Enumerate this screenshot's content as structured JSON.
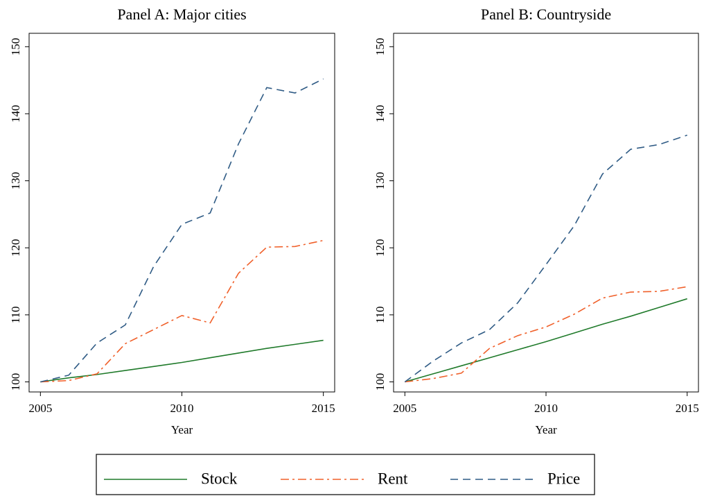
{
  "chart_data": [
    {
      "type": "line",
      "title": "Panel A: Major cities",
      "xlabel": "Year",
      "x": [
        2005,
        2006,
        2007,
        2008,
        2009,
        2010,
        2011,
        2012,
        2013,
        2014,
        2015
      ],
      "series": [
        {
          "name": "Stock",
          "color": "#1f7a2a",
          "values": [
            100,
            100.6,
            101.1,
            101.7,
            102.3,
            102.9,
            103.6,
            104.3,
            105.0,
            105.6,
            106.2
          ]
        },
        {
          "name": "Rent",
          "color": "#f0602a",
          "values": [
            100,
            100.2,
            101.2,
            105.7,
            107.8,
            109.9,
            108.8,
            116.2,
            120.1,
            120.2,
            121.1
          ]
        },
        {
          "name": "Price",
          "color": "#2f5b85",
          "values": [
            100,
            101,
            105.8,
            108.5,
            117.2,
            123.5,
            125.2,
            135.5,
            143.9,
            143.1,
            145.2
          ]
        }
      ],
      "xlim": [
        2004.6,
        2015.4
      ],
      "xticks": [
        2005,
        2010,
        2015
      ],
      "ylim": [
        98.5,
        152
      ],
      "yticks": [
        100,
        110,
        120,
        130,
        140,
        150
      ],
      "grid": false
    },
    {
      "type": "line",
      "title": "Panel B: Countryside",
      "xlabel": "Year",
      "x": [
        2005,
        2006,
        2007,
        2008,
        2009,
        2010,
        2011,
        2012,
        2013,
        2014,
        2015
      ],
      "series": [
        {
          "name": "Stock",
          "color": "#1f7a2a",
          "values": [
            100,
            101.2,
            102.4,
            103.6,
            104.8,
            106.0,
            107.3,
            108.6,
            109.8,
            111.1,
            112.4
          ]
        },
        {
          "name": "Rent",
          "color": "#f0602a",
          "values": [
            100,
            100.5,
            101.3,
            105,
            106.9,
            108.2,
            110.1,
            112.5,
            113.4,
            113.5,
            114.2
          ]
        },
        {
          "name": "Price",
          "color": "#2f5b85",
          "values": [
            100,
            103.1,
            105.8,
            107.8,
            111.8,
            117.5,
            123.3,
            131,
            134.7,
            135.4,
            136.8
          ]
        }
      ],
      "xlim": [
        2004.6,
        2015.4
      ],
      "xticks": [
        2005,
        2010,
        2015
      ],
      "ylim": [
        98.5,
        152
      ],
      "yticks": [
        100,
        110,
        120,
        130,
        140,
        150
      ],
      "grid": false
    }
  ]
}
